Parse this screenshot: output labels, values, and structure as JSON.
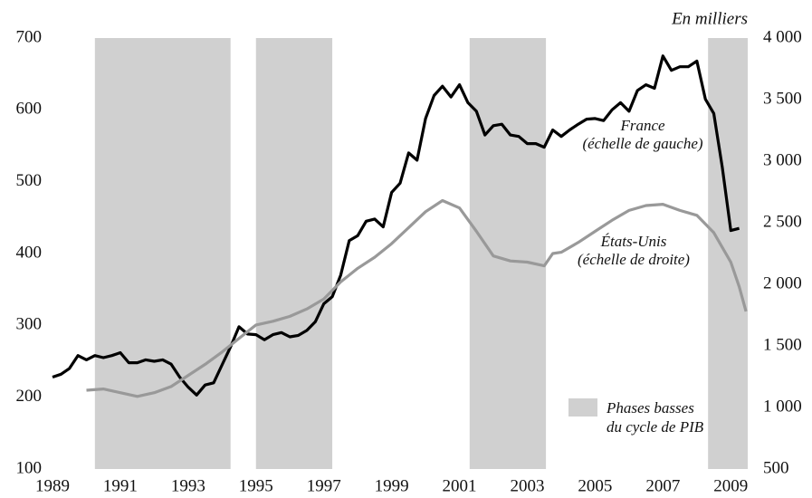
{
  "chart_data": {
    "type": "line",
    "unit_note": "En milliers",
    "xlim": [
      1989,
      2009.5
    ],
    "xticks": [
      1989,
      1991,
      1993,
      1995,
      1997,
      1999,
      2001,
      2003,
      2005,
      2007,
      2009
    ],
    "ylim": [
      100,
      700
    ],
    "yticks": [
      100,
      200,
      300,
      400,
      500,
      600,
      700
    ],
    "y2lim": [
      500,
      4000
    ],
    "y2ticks": [
      {
        "value": 500,
        "label": "500"
      },
      {
        "value": 1000,
        "label": "1 000"
      },
      {
        "value": 1500,
        "label": "1 500"
      },
      {
        "value": 2000,
        "label": "2 000"
      },
      {
        "value": 2500,
        "label": "2 500"
      },
      {
        "value": 3000,
        "label": "3 000"
      },
      {
        "value": 3500,
        "label": "3 500"
      },
      {
        "value": 4000,
        "label": "4 000"
      }
    ],
    "shading": {
      "label_lines": [
        "Phases basses",
        "du cycle de PIB"
      ],
      "color": "#d0d0d0",
      "periods": [
        [
          1990.25,
          1994.25
        ],
        [
          1995.0,
          1997.25
        ],
        [
          2001.3,
          2003.55
        ],
        [
          2008.33,
          2009.5
        ]
      ]
    },
    "series": [
      {
        "name": "France",
        "note": "(échelle de gauche)",
        "color": "#000000",
        "axis": "y",
        "x": [
          1989,
          1989.25,
          1989.5,
          1989.75,
          1990,
          1990.25,
          1990.5,
          1990.75,
          1991,
          1991.25,
          1991.5,
          1991.75,
          1992,
          1992.25,
          1992.5,
          1992.75,
          1993,
          1993.25,
          1993.5,
          1993.75,
          1994,
          1994.25,
          1994.5,
          1994.75,
          1995,
          1995.25,
          1995.5,
          1995.75,
          1996,
          1996.25,
          1996.5,
          1996.75,
          1997,
          1997.25,
          1997.5,
          1997.75,
          1998,
          1998.25,
          1998.5,
          1998.75,
          1999,
          1999.25,
          1999.5,
          1999.75,
          2000,
          2000.25,
          2000.5,
          2000.75,
          2001,
          2001.25,
          2001.5,
          2001.75,
          2002,
          2002.25,
          2002.5,
          2002.75,
          2003,
          2003.25,
          2003.5,
          2003.75,
          2004,
          2004.25,
          2004.5,
          2004.75,
          2005,
          2005.25,
          2005.5,
          2005.75,
          2006,
          2006.25,
          2006.5,
          2006.75,
          2007,
          2007.25,
          2007.5,
          2007.75,
          2008,
          2008.25,
          2008.5,
          2008.75,
          2009,
          2009.25
        ],
        "values": [
          228,
          232,
          240,
          258,
          252,
          258,
          255,
          258,
          262,
          248,
          248,
          252,
          250,
          252,
          246,
          228,
          214,
          203,
          217,
          220,
          245,
          270,
          298,
          288,
          287,
          280,
          287,
          290,
          284,
          286,
          293,
          305,
          330,
          340,
          370,
          418,
          425,
          445,
          448,
          437,
          485,
          498,
          540,
          530,
          588,
          620,
          633,
          618,
          635,
          610,
          598,
          565,
          578,
          580,
          565,
          563,
          553,
          553,
          548,
          572,
          563,
          572,
          580,
          587,
          588,
          585,
          600,
          610,
          598,
          627,
          635,
          630,
          675,
          655,
          660,
          660,
          668,
          615,
          595,
          520,
          432,
          435
        ]
      },
      {
        "name": "États-Unis",
        "note": "(échelle de droite)",
        "color": "#999999",
        "axis": "y2",
        "x": [
          1990,
          1990.5,
          1991,
          1991.5,
          1992,
          1992.5,
          1993,
          1993.5,
          1994,
          1994.5,
          1995,
          1995.5,
          1996,
          1996.5,
          1997,
          1997.5,
          1998,
          1998.5,
          1999,
          1999.5,
          2000,
          2000.5,
          2001,
          2001.5,
          2002,
          2002.5,
          2003,
          2003.5,
          2003.75,
          2004,
          2004.5,
          2005,
          2005.5,
          2006,
          2006.5,
          2007,
          2007.5,
          2008,
          2008.5,
          2009,
          2009.25,
          2009.45
        ],
        "values": [
          1140,
          1150,
          1120,
          1090,
          1120,
          1170,
          1260,
          1350,
          1450,
          1560,
          1670,
          1700,
          1740,
          1800,
          1880,
          2020,
          2130,
          2220,
          2330,
          2460,
          2590,
          2680,
          2620,
          2430,
          2230,
          2190,
          2180,
          2150,
          2250,
          2260,
          2340,
          2430,
          2520,
          2600,
          2640,
          2650,
          2600,
          2560,
          2420,
          2180,
          1980,
          1780
        ]
      }
    ]
  }
}
